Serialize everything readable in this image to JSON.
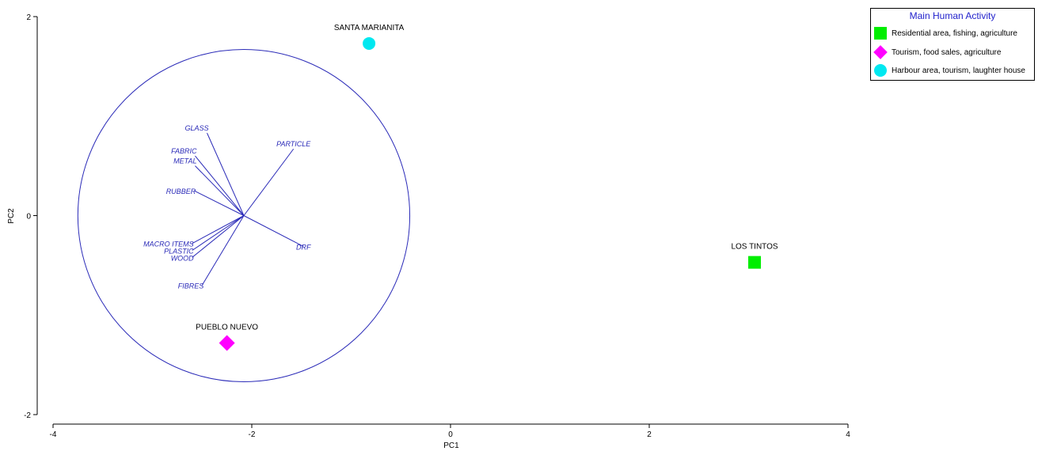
{
  "chart_data": {
    "type": "scatter",
    "xlabel": "PC1",
    "ylabel": "PC2",
    "xlim": [
      -4,
      4
    ],
    "ylim": [
      -2,
      2
    ],
    "x_ticks": [
      -4,
      -2,
      0,
      2,
      4
    ],
    "y_ticks": [
      -2,
      0,
      2
    ],
    "legend": {
      "title": "Main Human Activity",
      "placement": "top-right",
      "items": [
        {
          "label": "Residential area, fishing, agriculture",
          "marker": "square",
          "color": "#00ee00"
        },
        {
          "label": "Tourism, food sales, agriculture",
          "marker": "diamond",
          "color": "#ff00ff"
        },
        {
          "label": "Harbour area, tourism, laughter house",
          "marker": "circle",
          "color": "#00e8f0"
        }
      ]
    },
    "points": [
      {
        "label": "SANTA MARIANITA",
        "x": -0.82,
        "y": 1.73,
        "marker": "circle",
        "color": "#00e8f0"
      },
      {
        "label": "LOS TINTOS",
        "x": 3.06,
        "y": -0.47,
        "marker": "square",
        "color": "#00ee00"
      },
      {
        "label": "PUEBLO NUEVO",
        "x": -2.25,
        "y": -1.28,
        "marker": "diamond",
        "color": "#ff00ff"
      }
    ],
    "loadings": {
      "circle_center": [
        -2.08,
        0.0
      ],
      "circle_radius": 1.67,
      "color": "#2b2bb8",
      "vectors": [
        {
          "label": "GLASS",
          "x": -2.45,
          "y": 0.83
        },
        {
          "label": "FABRIC",
          "x": -2.57,
          "y": 0.6
        },
        {
          "label": "METAL",
          "x": -2.57,
          "y": 0.5
        },
        {
          "label": "RUBBER",
          "x": -2.58,
          "y": 0.25
        },
        {
          "label": "PARTICLE",
          "x": -1.58,
          "y": 0.67
        },
        {
          "label": "DRF",
          "x": -1.48,
          "y": -0.31
        },
        {
          "label": "MACRO ITEMS",
          "x": -2.6,
          "y": -0.28
        },
        {
          "label": "PLASTIC",
          "x": -2.6,
          "y": -0.35
        },
        {
          "label": "WOOD",
          "x": -2.6,
          "y": -0.42
        },
        {
          "label": "FIBRES",
          "x": -2.5,
          "y": -0.7
        }
      ]
    }
  }
}
